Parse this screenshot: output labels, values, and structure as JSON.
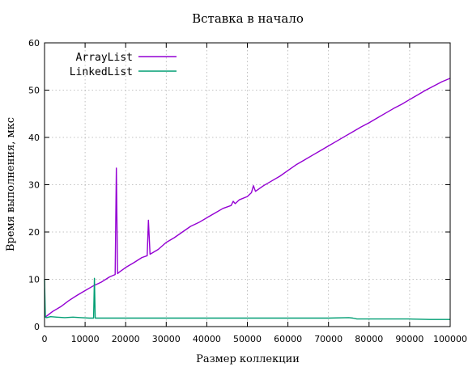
{
  "chart_data": {
    "type": "line",
    "title": "Вставка в начало",
    "xlabel": "Размер коллекции",
    "ylabel": "Время выполнения, мкс",
    "xlim": [
      0,
      100000
    ],
    "ylim": [
      0,
      60
    ],
    "xticks": [
      "0",
      "10000",
      "20000",
      "30000",
      "40000",
      "50000",
      "60000",
      "70000",
      "80000",
      "90000",
      "100000"
    ],
    "yticks": [
      "0",
      "10",
      "20",
      "30",
      "40",
      "50",
      "60"
    ],
    "grid": true,
    "legend_position": "top-left",
    "series": [
      {
        "name": "ArrayList",
        "color": "#9400d3",
        "x": [
          0,
          500,
          2000,
          4000,
          6000,
          8000,
          10000,
          12000,
          14000,
          16000,
          17400,
          17700,
          18000,
          18400,
          20000,
          22000,
          24000,
          25300,
          25600,
          26000,
          28000,
          30000,
          32000,
          34000,
          36000,
          38000,
          40000,
          42000,
          44000,
          46000,
          46500,
          47000,
          48000,
          50000,
          51000,
          51500,
          52000,
          54000,
          56000,
          58000,
          60000,
          62000,
          64000,
          66000,
          68000,
          70000,
          72000,
          74000,
          76000,
          78000,
          80000,
          82000,
          84000,
          86000,
          88000,
          90000,
          92000,
          94000,
          96000,
          98000,
          100000
        ],
        "values": [
          2,
          2.2,
          3.2,
          4.2,
          5.5,
          6.6,
          7.6,
          8.6,
          9.4,
          10.5,
          11.0,
          33.5,
          11.2,
          11.5,
          12.5,
          13.5,
          14.6,
          15.0,
          22.5,
          15.3,
          16.3,
          17.8,
          18.8,
          20.0,
          21.2,
          22.0,
          23.0,
          24.0,
          25.0,
          25.6,
          26.5,
          26.0,
          26.8,
          27.5,
          28.3,
          29.8,
          28.6,
          29.8,
          30.8,
          31.8,
          33.0,
          34.2,
          35.2,
          36.2,
          37.2,
          38.2,
          39.2,
          40.2,
          41.2,
          42.2,
          43.1,
          44.1,
          45.1,
          46.1,
          47.0,
          48.0,
          49.0,
          50.0,
          50.9,
          51.8,
          52.5
        ]
      },
      {
        "name": "LinkedList",
        "color": "#009e73",
        "x": [
          0,
          200,
          500,
          1500,
          3000,
          5000,
          7000,
          9000,
          11000,
          12100,
          12300,
          12500,
          14000,
          16000,
          20000,
          25000,
          30000,
          35000,
          40000,
          45000,
          50000,
          55000,
          60000,
          65000,
          70000,
          75000,
          76000,
          77000,
          80000,
          85000,
          90000,
          95000,
          100000
        ],
        "values": [
          10,
          2.0,
          1.9,
          2.1,
          2.0,
          1.9,
          2.0,
          1.9,
          1.8,
          1.8,
          10.2,
          1.8,
          1.8,
          1.8,
          1.8,
          1.8,
          1.8,
          1.8,
          1.8,
          1.8,
          1.8,
          1.8,
          1.8,
          1.8,
          1.8,
          1.9,
          1.8,
          1.6,
          1.6,
          1.6,
          1.6,
          1.5,
          1.5
        ]
      }
    ]
  }
}
